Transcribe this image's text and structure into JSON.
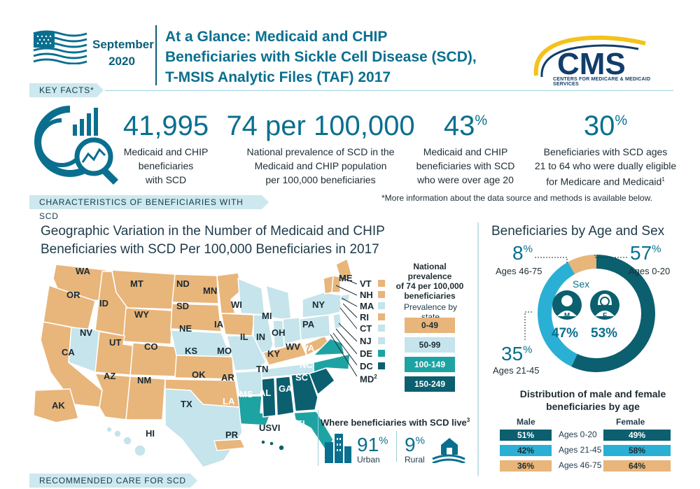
{
  "header": {
    "date_line1": "September",
    "date_line2": "2020",
    "title_line1": "At a Glance: Medicaid and CHIP",
    "title_line2": "Beneficiaries with Sickle Cell Disease (SCD),",
    "title_line3": "T-MSIS Analytic Files (TAF) 2017",
    "logo_text": "CMS",
    "logo_subtext": "CENTERS FOR MEDICARE & MEDICAID SERVICES"
  },
  "sections": {
    "key_facts": "KEY FACTS*",
    "characteristics": "CHARACTERISTICS OF BENEFICIARIES WITH SCD",
    "recommended": "RECOMMENDED CARE FOR SCD"
  },
  "key_facts": [
    {
      "value": "41,995",
      "line1": "Medicaid and CHIP",
      "line2": "beneficiaries",
      "line3": "with SCD"
    },
    {
      "value": "74 per 100,000",
      "line1": "National prevalence of SCD in the",
      "line2": "Medicaid and CHIP population",
      "line3": "per 100,000 beneficiaries"
    },
    {
      "value": "43",
      "suffix": "%",
      "line1": "Medicaid and CHIP",
      "line2": "beneficiaries with SCD",
      "line3": "who were over age 20"
    },
    {
      "value": "30",
      "suffix": "%",
      "line1": "Beneficiaries with SCD ages",
      "line2": "21 to 64 who were dually eligible",
      "line3": "for Medicare and Medicaid",
      "footnote": "1"
    }
  ],
  "note": "*More information about the data source and methods is available below.",
  "map": {
    "title_line1": "Geographic Variation in the Number of Medicaid and CHIP",
    "title_line2": "Beneficiaries with SCD Per 100,000 Beneficiaries in 2017",
    "legend_title_line1": "National prevalence",
    "legend_title_line2": "of 74 per 100,000",
    "legend_title_line3": "beneficiaries",
    "legend_subtitle": "Prevalence by state",
    "legend": [
      {
        "label": "0-49",
        "color": "#e8b57a"
      },
      {
        "label": "50-99",
        "color": "#c5e4eb"
      },
      {
        "label": "100-149",
        "color": "#1ea3a3"
      },
      {
        "label": "150-249",
        "color": "#0b5f6f"
      }
    ],
    "states": {
      "WA": "WA",
      "OR": "OR",
      "CA": "CA",
      "ID": "ID",
      "NV": "NV",
      "MT": "MT",
      "WY": "WY",
      "UT": "UT",
      "AZ": "AZ",
      "CO": "CO",
      "NM": "NM",
      "ND": "ND",
      "SD": "SD",
      "NE": "NE",
      "KS": "KS",
      "OK": "OK",
      "TX": "TX",
      "MN": "MN",
      "IA": "IA",
      "MO": "MO",
      "AR": "AR",
      "LA": "LA",
      "WI": "WI",
      "IL": "IL",
      "MI": "MI",
      "IN": "IN",
      "OH": "OH",
      "KY": "KY",
      "TN": "TN",
      "MS": "MS",
      "AL": "AL",
      "GA": "GA",
      "FL": "FL",
      "SC": "SC",
      "NC": "NC",
      "VA": "VA",
      "WV": "WV",
      "PA": "PA",
      "NY": "NY",
      "ME": "ME",
      "AK": "AK",
      "HI": "HI",
      "PR": "PR",
      "USVI": "USVI"
    },
    "callouts": [
      "VT",
      "NH",
      "MA",
      "RI",
      "CT",
      "NJ",
      "DE",
      "DC",
      "MD"
    ],
    "md_footnote": "2"
  },
  "live": {
    "title": "Where beneficiaries with SCD live",
    "footnote": "3",
    "urban_value": "91",
    "urban_suffix": "%",
    "urban_label": "Urban",
    "rural_value": "9",
    "rural_suffix": "%",
    "rural_label": "Rural",
    "urban_pct": 91,
    "rural_pct": 9
  },
  "age_sex": {
    "title": "Beneficiaries by Age and Sex",
    "ring": [
      {
        "label": "Ages 0-20",
        "value": "57",
        "suffix": "%",
        "pct": 57,
        "color": "#0b5f6f"
      },
      {
        "label": "Ages 21-45",
        "value": "35",
        "suffix": "%",
        "pct": 35,
        "color": "#2ab0d4"
      },
      {
        "label": "Ages 46-75",
        "value": "8",
        "suffix": "%",
        "pct": 8,
        "color": "#e8b57a"
      }
    ],
    "sex_label": "Sex",
    "male_letter": "M",
    "female_letter": "F",
    "male_pct": "47%",
    "female_pct": "53%",
    "dist_title_line1": "Distribution of male and female",
    "dist_title_line2": "beneficiaries by age",
    "male_header": "Male",
    "female_header": "Female",
    "rows": [
      {
        "age": "Ages 0-20",
        "male": "51%",
        "female": "49%",
        "color": "#0b5f6f",
        "text": "#ffffff"
      },
      {
        "age": "Ages 21-45",
        "male": "42%",
        "female": "58%",
        "color": "#2ab0d4",
        "text": "#1e2c33"
      },
      {
        "age": "Ages 46-75",
        "male": "36%",
        "female": "64%",
        "color": "#e8b57a",
        "text": "#1e2c33"
      }
    ]
  }
}
